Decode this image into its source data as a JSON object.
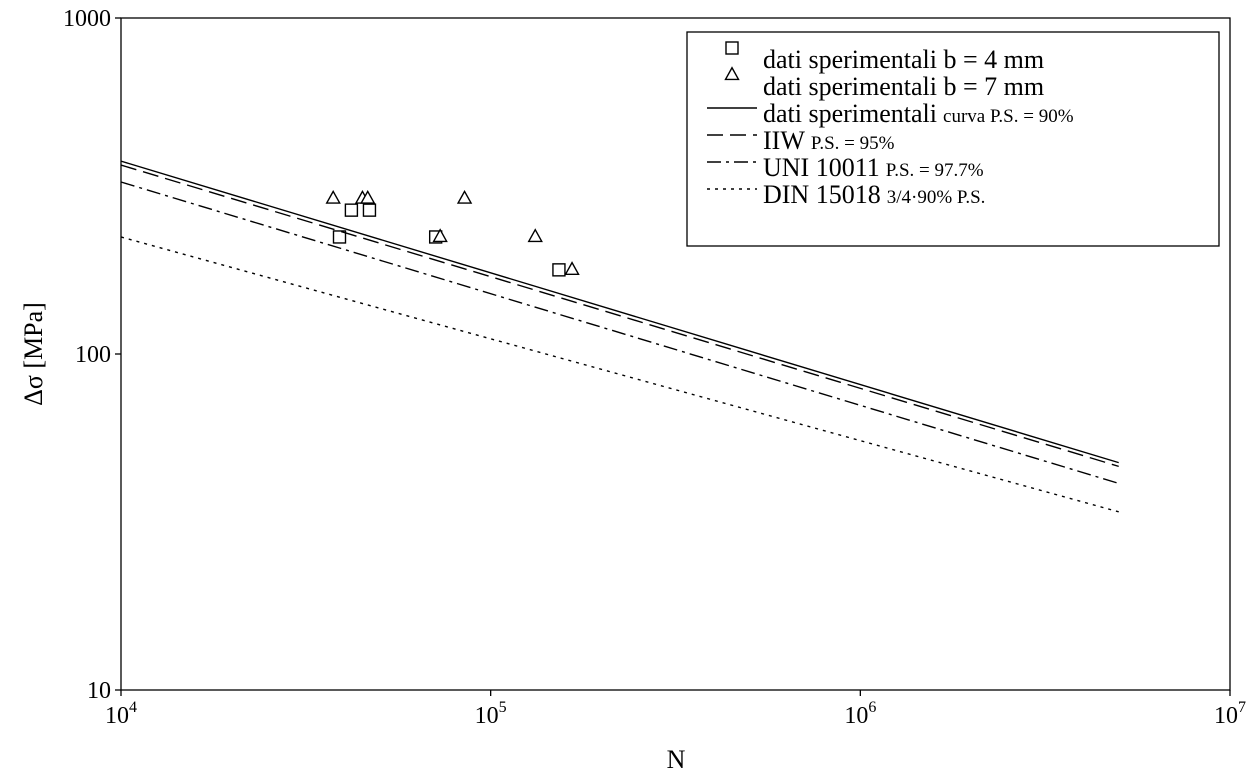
{
  "chart_data": {
    "type": "scatter",
    "xscale": "log",
    "yscale": "log",
    "xlim": [
      10000,
      10000000
    ],
    "ylim": [
      10,
      1000
    ],
    "xlabel": "N",
    "ylabel": "Δσ [MPa]",
    "grid": false,
    "legend_position": "top-right",
    "x_ticks": [
      {
        "base": "10",
        "exp": "4",
        "value": 10000
      },
      {
        "base": "10",
        "exp": "5",
        "value": 100000
      },
      {
        "base": "10",
        "exp": "6",
        "value": 1000000
      },
      {
        "base": "10",
        "exp": "7",
        "value": 10000000
      }
    ],
    "y_ticks": [
      {
        "label": "10",
        "value": 10
      },
      {
        "label": "100",
        "value": 100
      },
      {
        "label": "1000",
        "value": 1000
      }
    ],
    "series": [
      {
        "name": "dati sperimentali b = 4 mm",
        "name_main": "dati sperimentali b = 4 mm",
        "name_small": "",
        "kind": "points",
        "marker": "square",
        "points": [
          {
            "x": 39000,
            "y": 223
          },
          {
            "x": 42000,
            "y": 268
          },
          {
            "x": 47000,
            "y": 268
          },
          {
            "x": 71000,
            "y": 223
          },
          {
            "x": 153000,
            "y": 178
          }
        ]
      },
      {
        "name": "dati sperimentali b = 7 mm",
        "name_main": "dati sperimentali b = 7 mm",
        "name_small": "",
        "kind": "points",
        "marker": "triangle",
        "points": [
          {
            "x": 37500,
            "y": 290
          },
          {
            "x": 45000,
            "y": 290
          },
          {
            "x": 46500,
            "y": 290
          },
          {
            "x": 73000,
            "y": 223
          },
          {
            "x": 85000,
            "y": 290
          },
          {
            "x": 132000,
            "y": 223
          },
          {
            "x": 166000,
            "y": 178
          }
        ]
      },
      {
        "name": "dati sperimentali curva P.S. = 90%",
        "name_main": "dati sperimentali",
        "name_small": "curva P.S. = 90%",
        "kind": "line",
        "dash": "",
        "points": [
          {
            "x": 10000,
            "y": 375
          },
          {
            "x": 5000000,
            "y": 47.5
          }
        ]
      },
      {
        "name": "IIW P.S. = 95%",
        "name_main": "IIW",
        "name_small": "P.S. = 95%",
        "kind": "line",
        "dash": "16,7",
        "points": [
          {
            "x": 10000,
            "y": 365
          },
          {
            "x": 5000000,
            "y": 46.3
          }
        ]
      },
      {
        "name": "UNI 10011 P.S. = 97.7%",
        "name_main": "UNI 10011",
        "name_small": "P.S. = 97.7%",
        "kind": "line",
        "dash": "14,5,3,5",
        "points": [
          {
            "x": 10000,
            "y": 325
          },
          {
            "x": 5000000,
            "y": 41.2
          }
        ]
      },
      {
        "name": "DIN 15018 3/4·90% P.S.",
        "name_main": "DIN 15018",
        "name_small": "3/4·90% P.S.",
        "kind": "line",
        "dash": "3,5",
        "points": [
          {
            "x": 10000,
            "y": 223
          },
          {
            "x": 5000000,
            "y": 33.9
          }
        ]
      }
    ]
  }
}
